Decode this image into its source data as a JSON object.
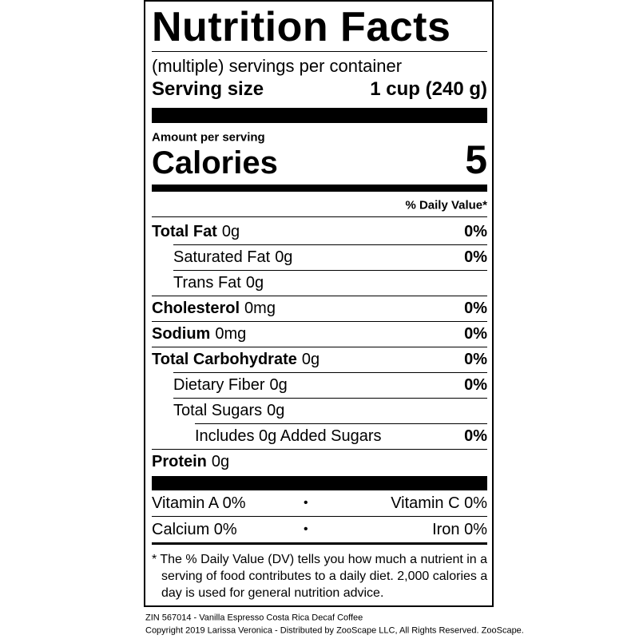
{
  "title": "Nutrition Facts",
  "servings_per_container": "(multiple) servings per container",
  "serving_size": {
    "label": "Serving size",
    "value": "1 cup (240 g)"
  },
  "amount_per_serving": "Amount per serving",
  "calories": {
    "label": "Calories",
    "value": "5"
  },
  "daily_value_header": "% Daily Value*",
  "nutrients": [
    {
      "name": "Total Fat",
      "amount": "0g",
      "dv": "0%"
    },
    {
      "name": "Saturated Fat",
      "amount": "0g",
      "dv": "0%"
    },
    {
      "name": "Trans Fat",
      "amount": "0g"
    },
    {
      "name": "Cholesterol",
      "amount": "0mg",
      "dv": "0%"
    },
    {
      "name": "Sodium",
      "amount": "0mg",
      "dv": "0%"
    },
    {
      "name": "Total Carbohydrate",
      "amount": "0g",
      "dv": "0%"
    },
    {
      "name": "Dietary Fiber",
      "amount": "0g",
      "dv": "0%"
    },
    {
      "name": "Total Sugars",
      "amount": "0g"
    },
    {
      "name": "Includes 0g Added Sugars",
      "dv": "0%"
    },
    {
      "name": "Protein",
      "amount": "0g"
    }
  ],
  "vitamins": [
    {
      "left": "Vitamin A 0%",
      "separator": "•",
      "right": "Vitamin C 0%"
    },
    {
      "left": "Calcium 0%",
      "separator": "•",
      "right": "Iron 0%"
    }
  ],
  "footnote": "* The % Daily Value (DV) tells you how much a nutrient in a serving of food contributes to a daily diet. 2,000 calories a day is used for general nutrition advice.",
  "footer": [
    "ZIN 567014 - Vanilla Espresso Costa Rica Decaf Coffee",
    "Copyright 2019 Larissa Veronica - Distributed by ZooScape LLC, All Rights Reserved. ZooScape."
  ]
}
